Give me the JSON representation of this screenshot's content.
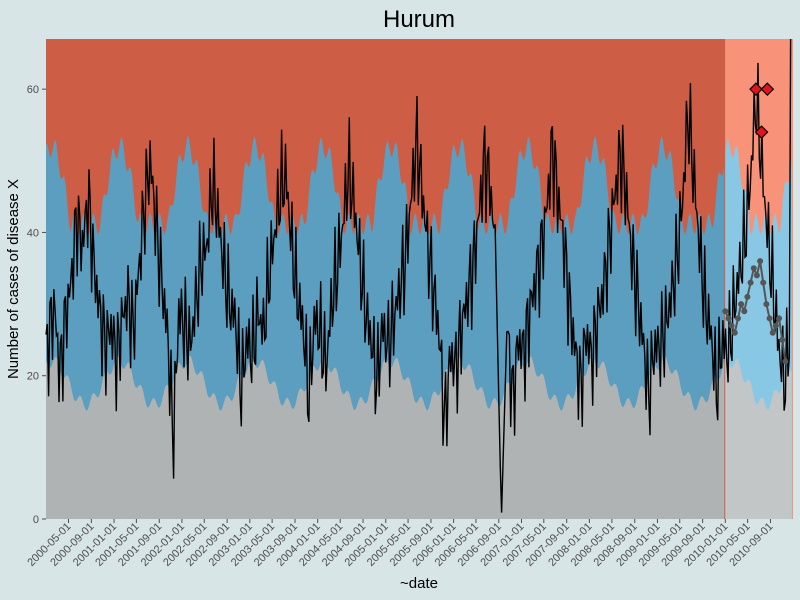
{
  "chart_data": {
    "type": "line",
    "title": "Hurum",
    "xlabel": "~date",
    "ylabel": "Number of cases of disease X",
    "ylim": [
      0,
      67
    ],
    "xlim": [
      "2000-01-01",
      "2010-12-31"
    ],
    "forecast_start": "2010-01-01",
    "y_ticks": [
      0,
      20,
      40,
      60
    ],
    "x_ticks": [
      "2000-05-01",
      "2000-09-01",
      "2001-01-01",
      "2001-05-01",
      "2001-09-01",
      "2002-01-01",
      "2002-05-01",
      "2002-09-01",
      "2003-01-01",
      "2003-05-01",
      "2003-09-01",
      "2004-01-01",
      "2004-05-01",
      "2004-09-01",
      "2005-01-01",
      "2005-05-01",
      "2005-09-01",
      "2006-01-01",
      "2006-05-01",
      "2006-09-01",
      "2007-01-01",
      "2007-05-01",
      "2007-09-01",
      "2008-01-01",
      "2008-05-01",
      "2008-09-01",
      "2009-01-01",
      "2009-05-01",
      "2009-09-01",
      "2010-01-01",
      "2010-05-01",
      "2010-09-01"
    ],
    "bands": {
      "low_threshold_baseline": 22,
      "high_threshold_baseline": 43,
      "seasonal_amplitude_low": 3,
      "seasonal_amplitude_high": 9
    },
    "series": [
      {
        "values": [
          [
            25,
            30,
            20,
            28,
            33,
            42,
            38,
            45,
            35,
            29,
            24,
            27
          ],
          [
            22,
            28,
            31,
            26,
            35,
            44,
            50,
            41,
            33,
            26,
            11,
            29
          ],
          [
            27,
            24,
            30,
            36,
            38,
            47,
            42,
            35,
            30,
            28,
            18,
            25
          ],
          [
            23,
            29,
            26,
            34,
            40,
            46,
            48,
            38,
            31,
            27,
            17,
            28
          ],
          [
            26,
            21,
            30,
            35,
            41,
            49,
            44,
            36,
            29,
            25,
            19,
            27
          ],
          [
            24,
            28,
            32,
            36,
            44,
            53,
            46,
            38,
            32,
            26,
            13,
            23
          ],
          [
            21,
            27,
            31,
            35,
            42,
            50,
            47,
            37,
            0,
            27,
            16,
            25
          ],
          [
            23,
            29,
            33,
            37,
            43,
            52,
            45,
            39,
            30,
            24,
            18,
            26
          ],
          [
            22,
            28,
            32,
            38,
            45,
            51,
            46,
            37,
            31,
            25,
            17,
            24
          ],
          [
            24,
            27,
            31,
            36,
            44,
            57,
            48,
            38,
            30,
            26,
            18,
            25
          ],
          [
            23,
            29,
            34,
            39,
            47,
            59,
            50,
            40,
            32,
            24,
            19,
            26
          ]
        ]
      }
    ],
    "outbreaks": [
      {
        "date": "2010-06-15",
        "value": 60
      },
      {
        "date": "2010-07-15",
        "value": 54
      },
      {
        "date": "2010-08-15",
        "value": 60
      }
    ],
    "forecast_points": [
      29,
      28,
      27,
      26,
      28,
      30,
      29,
      31,
      33,
      35,
      34,
      36,
      33,
      30,
      28,
      26,
      27,
      28,
      25,
      22
    ],
    "colors": {
      "background": "#d8e5e6",
      "high": "#cd5e45",
      "high_forecast": "#f89279",
      "normal": "#5b9ec0",
      "normal_forecast": "#89c8e4",
      "low": "#afb3b3",
      "low_forecast": "#c2c6c6",
      "line": "#000000",
      "forecast_point": "#555555",
      "outbreak": "#e3121d"
    }
  }
}
